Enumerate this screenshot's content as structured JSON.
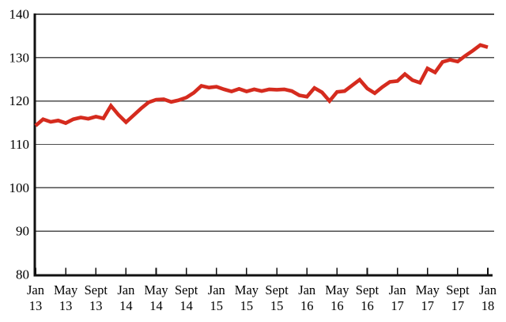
{
  "chart_data": {
    "type": "line",
    "title": "",
    "xlabel": "",
    "ylabel": "",
    "ylim": [
      80,
      140
    ],
    "y_ticks": [
      80,
      90,
      100,
      110,
      120,
      130,
      140
    ],
    "grid": true,
    "legend": "none",
    "line_color": "#d52b1e",
    "background_color": "#ffffff",
    "x_tick_labels": [
      {
        "month": "Jan",
        "year": "13"
      },
      {
        "month": "May",
        "year": "13"
      },
      {
        "month": "Sept",
        "year": "13"
      },
      {
        "month": "Jan",
        "year": "14"
      },
      {
        "month": "May",
        "year": "14"
      },
      {
        "month": "Sept",
        "year": "14"
      },
      {
        "month": "Jan",
        "year": "15"
      },
      {
        "month": "May",
        "year": "15"
      },
      {
        "month": "Sept",
        "year": "15"
      },
      {
        "month": "Jan",
        "year": "16"
      },
      {
        "month": "May",
        "year": "16"
      },
      {
        "month": "Sept",
        "year": "16"
      },
      {
        "month": "Jan",
        "year": "17"
      },
      {
        "month": "May",
        "year": "17"
      },
      {
        "month": "Sept",
        "year": "17"
      },
      {
        "month": "Jan",
        "year": "18"
      }
    ],
    "x_months": [
      "2013-01",
      "2013-02",
      "2013-03",
      "2013-04",
      "2013-05",
      "2013-06",
      "2013-07",
      "2013-08",
      "2013-09",
      "2013-10",
      "2013-11",
      "2013-12",
      "2014-01",
      "2014-02",
      "2014-03",
      "2014-04",
      "2014-05",
      "2014-06",
      "2014-07",
      "2014-08",
      "2014-09",
      "2014-10",
      "2014-11",
      "2014-12",
      "2015-01",
      "2015-02",
      "2015-03",
      "2015-04",
      "2015-05",
      "2015-06",
      "2015-07",
      "2015-08",
      "2015-09",
      "2015-10",
      "2015-11",
      "2015-12",
      "2016-01",
      "2016-02",
      "2016-03",
      "2016-04",
      "2016-05",
      "2016-06",
      "2016-07",
      "2016-08",
      "2016-09",
      "2016-10",
      "2016-11",
      "2016-12",
      "2017-01",
      "2017-02",
      "2017-03",
      "2017-04",
      "2017-05",
      "2017-06",
      "2017-07",
      "2017-08",
      "2017-09",
      "2017-10",
      "2017-11",
      "2017-12",
      "2018-01"
    ],
    "values": [
      114.3,
      115.8,
      115.2,
      115.5,
      114.9,
      115.8,
      116.2,
      115.9,
      116.4,
      116.0,
      118.9,
      116.8,
      115.1,
      116.7,
      118.3,
      119.7,
      120.3,
      120.4,
      119.8,
      120.2,
      120.8,
      121.9,
      123.5,
      123.1,
      123.3,
      122.7,
      122.2,
      122.8,
      122.2,
      122.7,
      122.3,
      122.7,
      122.6,
      122.7,
      122.3,
      121.3,
      121.0,
      123.0,
      122.0,
      120.0,
      122.1,
      122.3,
      123.6,
      124.9,
      122.9,
      121.8,
      123.2,
      124.4,
      124.6,
      126.2,
      124.8,
      124.2,
      127.5,
      126.6,
      129.0,
      129.5,
      129.1,
      130.4,
      131.6,
      132.9,
      132.4
    ]
  }
}
